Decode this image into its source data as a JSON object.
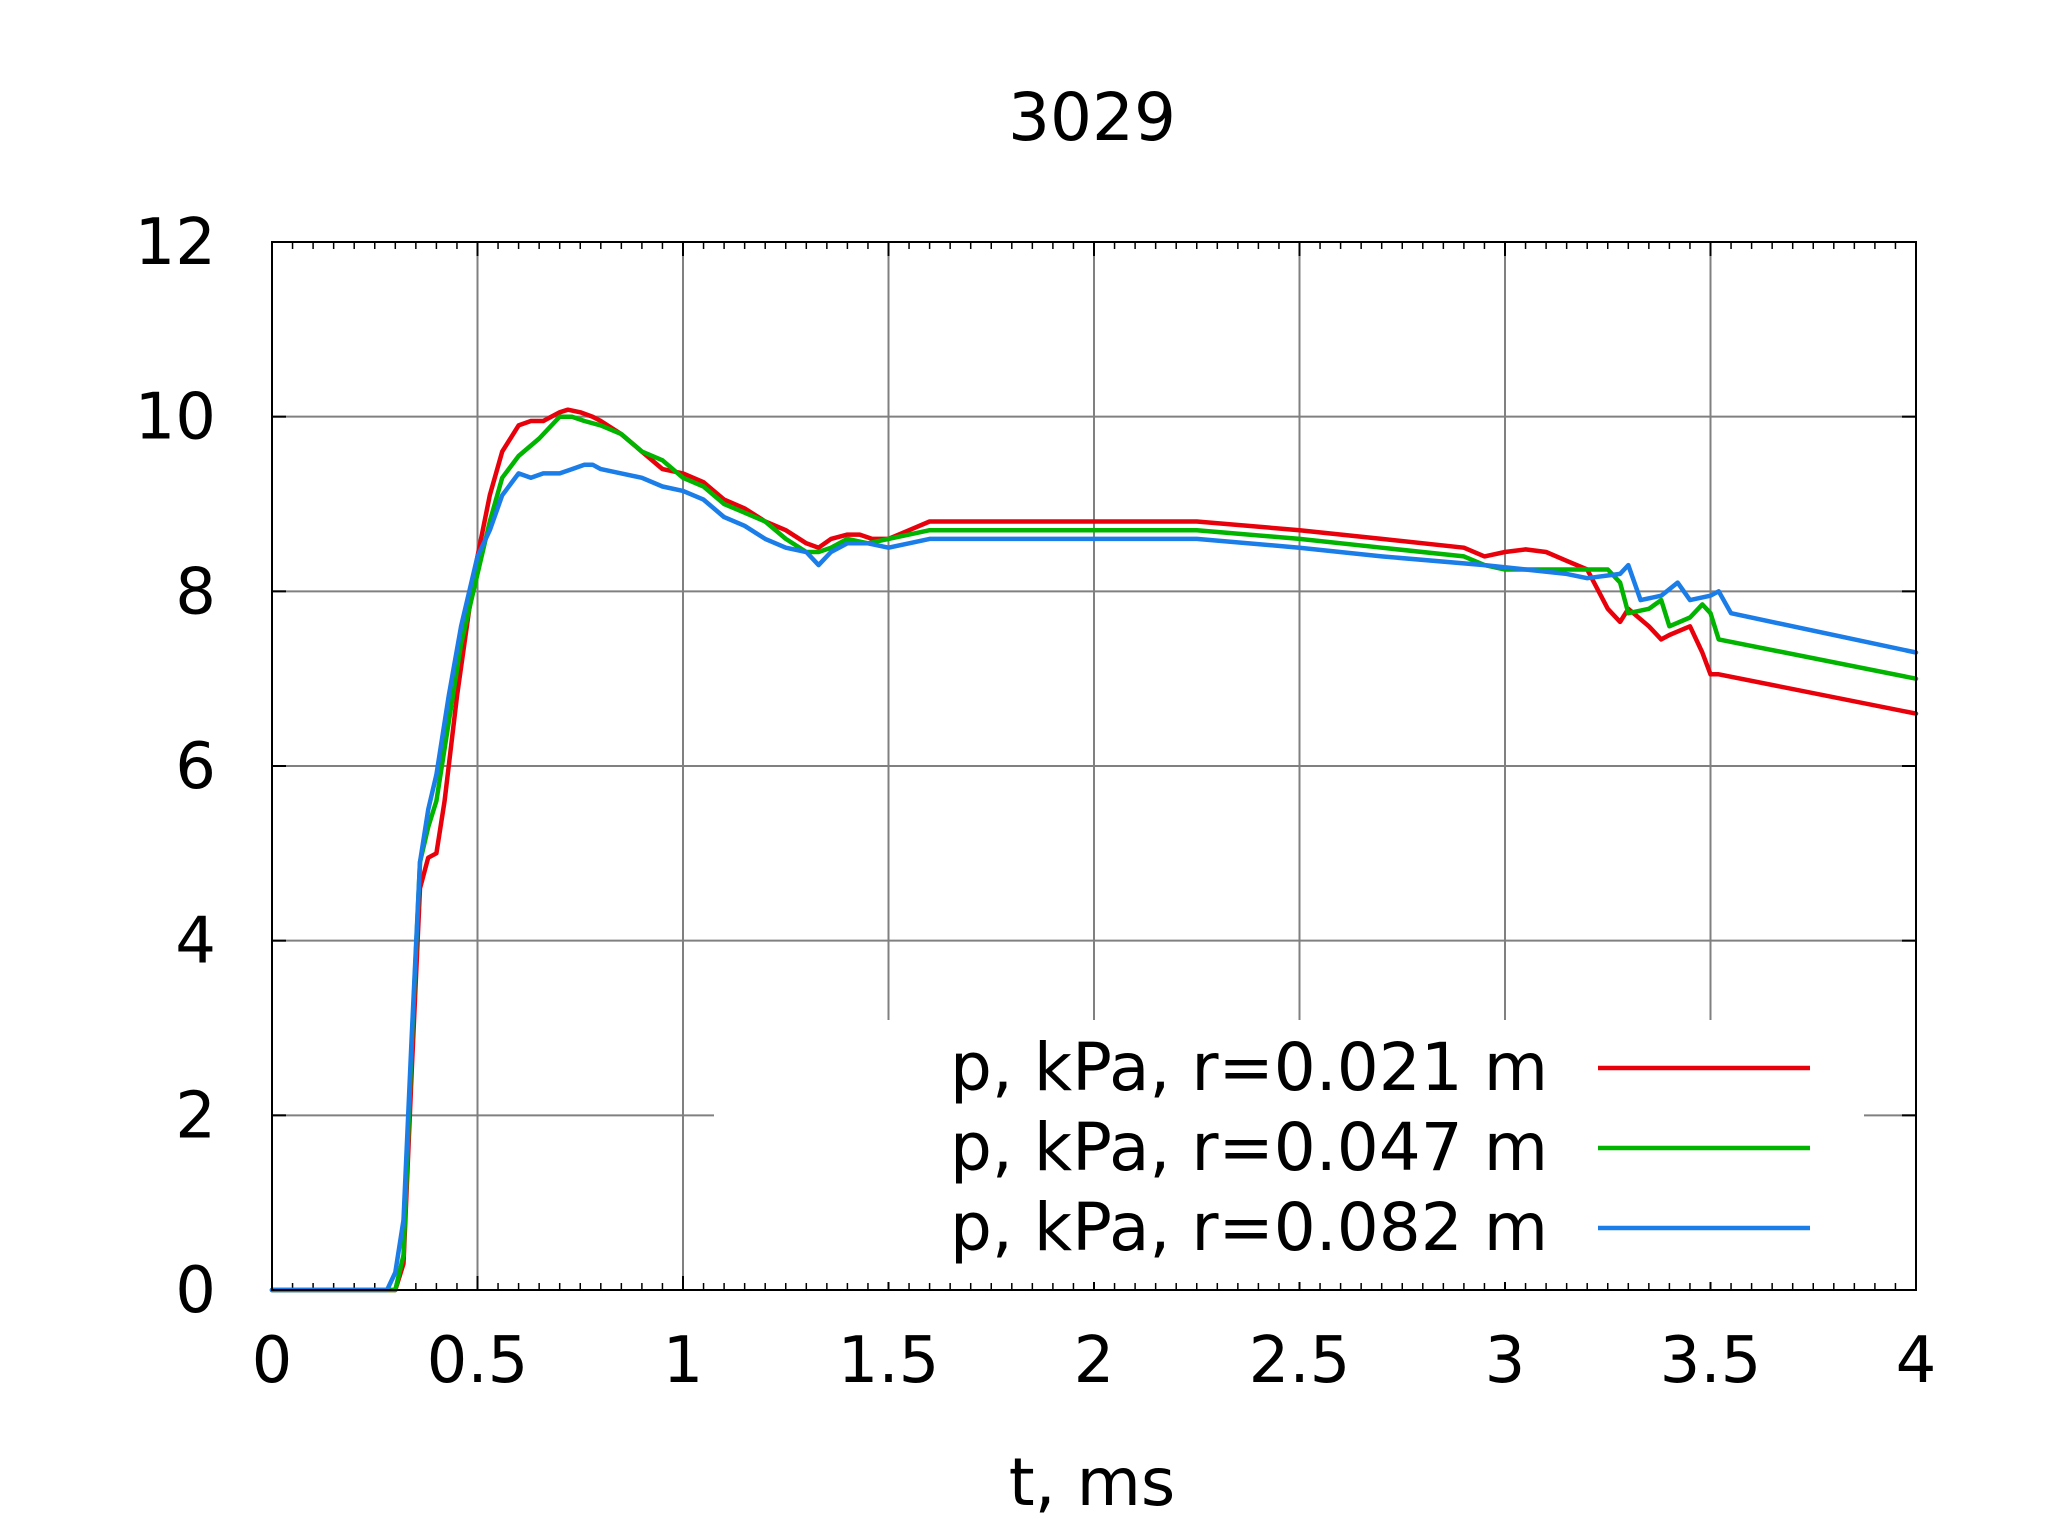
{
  "chart_data": {
    "type": "line",
    "title": "3029",
    "xlabel": "t, ms",
    "ylabel": "",
    "xlim": [
      0,
      4
    ],
    "ylim": [
      0,
      12
    ],
    "xticks": [
      "0",
      "0.5",
      "1",
      "1.5",
      "2",
      "2.5",
      "3",
      "3.5",
      "4"
    ],
    "yticks": [
      "0",
      "2",
      "4",
      "6",
      "8",
      "10",
      "12"
    ],
    "grid": true,
    "legend_position": "bottom-right",
    "series": [
      {
        "name": "p, kPa, r=0.021 m",
        "color": "#e8000b",
        "x": [
          0,
          0.28,
          0.3,
          0.32,
          0.34,
          0.36,
          0.38,
          0.4,
          0.42,
          0.45,
          0.48,
          0.5,
          0.53,
          0.56,
          0.6,
          0.63,
          0.66,
          0.7,
          0.72,
          0.75,
          0.78,
          0.8,
          0.85,
          0.9,
          0.95,
          1.0,
          1.05,
          1.1,
          1.15,
          1.2,
          1.25,
          1.3,
          1.33,
          1.36,
          1.4,
          1.43,
          1.46,
          1.5,
          1.55,
          1.6,
          1.7,
          2.0,
          2.25,
          2.5,
          2.7,
          2.9,
          2.95,
          3.0,
          3.05,
          3.1,
          3.15,
          3.2,
          3.25,
          3.28,
          3.3,
          3.35,
          3.38,
          3.4,
          3.45,
          3.48,
          3.5,
          3.52,
          4.0
        ],
        "values": [
          0,
          0,
          0,
          0.3,
          2.5,
          4.6,
          4.95,
          5.0,
          5.6,
          6.8,
          7.8,
          8.4,
          9.1,
          9.6,
          9.9,
          9.95,
          9.95,
          10.05,
          10.08,
          10.05,
          10.0,
          9.95,
          9.8,
          9.6,
          9.4,
          9.35,
          9.25,
          9.05,
          8.95,
          8.8,
          8.7,
          8.55,
          8.5,
          8.6,
          8.65,
          8.65,
          8.6,
          8.6,
          8.7,
          8.8,
          8.8,
          8.8,
          8.8,
          8.7,
          8.6,
          8.5,
          8.4,
          8.45,
          8.48,
          8.45,
          8.35,
          8.25,
          7.8,
          7.65,
          7.8,
          7.6,
          7.45,
          7.5,
          7.6,
          7.3,
          7.05,
          7.05,
          6.6
        ]
      },
      {
        "name": "p, kPa, r=0.047 m",
        "color": "#00b400",
        "x": [
          0,
          0.28,
          0.3,
          0.32,
          0.34,
          0.36,
          0.38,
          0.4,
          0.43,
          0.46,
          0.5,
          0.53,
          0.56,
          0.6,
          0.65,
          0.7,
          0.73,
          0.76,
          0.8,
          0.85,
          0.9,
          0.95,
          1.0,
          1.05,
          1.1,
          1.15,
          1.2,
          1.25,
          1.3,
          1.33,
          1.36,
          1.4,
          1.45,
          1.5,
          1.55,
          1.6,
          1.7,
          2.0,
          2.25,
          2.5,
          2.7,
          2.9,
          2.95,
          3.0,
          3.1,
          3.2,
          3.25,
          3.28,
          3.3,
          3.35,
          3.38,
          3.4,
          3.45,
          3.48,
          3.5,
          3.52,
          4.0
        ],
        "values": [
          0,
          0,
          0,
          0.4,
          2.8,
          4.9,
          5.3,
          5.6,
          6.5,
          7.4,
          8.2,
          8.8,
          9.3,
          9.55,
          9.75,
          10.0,
          10.0,
          9.95,
          9.9,
          9.8,
          9.6,
          9.5,
          9.3,
          9.2,
          9.0,
          8.9,
          8.8,
          8.6,
          8.45,
          8.45,
          8.5,
          8.6,
          8.55,
          8.6,
          8.65,
          8.7,
          8.7,
          8.7,
          8.7,
          8.6,
          8.5,
          8.4,
          8.3,
          8.25,
          8.25,
          8.25,
          8.25,
          8.1,
          7.75,
          7.8,
          7.9,
          7.6,
          7.7,
          7.85,
          7.75,
          7.45,
          7.0
        ]
      },
      {
        "name": "p, kPa, r=0.082 m",
        "color": "#1a7de8",
        "x": [
          0,
          0.28,
          0.3,
          0.32,
          0.34,
          0.36,
          0.38,
          0.4,
          0.43,
          0.46,
          0.5,
          0.53,
          0.56,
          0.6,
          0.63,
          0.66,
          0.7,
          0.73,
          0.76,
          0.78,
          0.8,
          0.85,
          0.9,
          0.95,
          1.0,
          1.05,
          1.1,
          1.15,
          1.2,
          1.25,
          1.3,
          1.33,
          1.36,
          1.4,
          1.45,
          1.5,
          1.55,
          1.6,
          1.7,
          2.0,
          2.25,
          2.5,
          2.7,
          2.95,
          3.05,
          3.15,
          3.2,
          3.28,
          3.3,
          3.33,
          3.38,
          3.42,
          3.45,
          3.5,
          3.52,
          3.55,
          4.0
        ],
        "values": [
          0,
          0,
          0.2,
          0.8,
          2.9,
          4.9,
          5.5,
          5.9,
          6.8,
          7.6,
          8.4,
          8.7,
          9.1,
          9.35,
          9.3,
          9.35,
          9.35,
          9.4,
          9.45,
          9.45,
          9.4,
          9.35,
          9.3,
          9.2,
          9.15,
          9.05,
          8.85,
          8.75,
          8.6,
          8.5,
          8.45,
          8.3,
          8.45,
          8.55,
          8.55,
          8.5,
          8.55,
          8.6,
          8.6,
          8.6,
          8.6,
          8.5,
          8.4,
          8.3,
          8.25,
          8.2,
          8.15,
          8.2,
          8.3,
          7.9,
          7.95,
          8.1,
          7.9,
          7.95,
          8.0,
          7.75,
          7.3
        ]
      }
    ]
  }
}
